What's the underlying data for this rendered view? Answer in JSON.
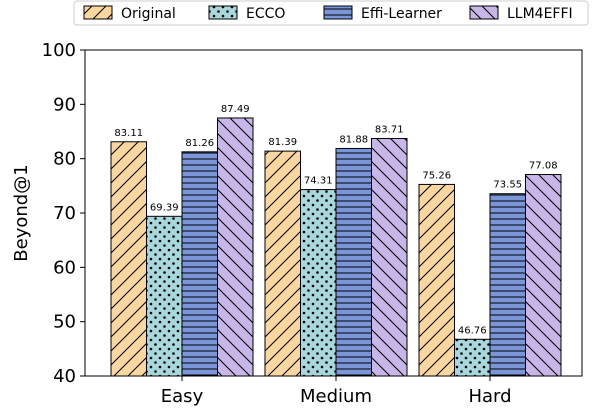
{
  "chart_data": {
    "type": "bar",
    "title": "",
    "xlabel": "",
    "ylabel": "Beyond@1",
    "ylim": [
      40,
      100
    ],
    "yticks": [
      40,
      50,
      60,
      70,
      80,
      90,
      100
    ],
    "categories": [
      "Easy",
      "Medium",
      "Hard"
    ],
    "series": [
      {
        "name": "Original",
        "values": [
          83.11,
          81.39,
          75.26
        ],
        "color": "#fad7a0",
        "pattern": "diagonal-forward"
      },
      {
        "name": "ECCO",
        "values": [
          69.39,
          74.31,
          46.76
        ],
        "color": "#a8d8dc",
        "pattern": "dots"
      },
      {
        "name": "Effi-Learner",
        "values": [
          81.26,
          81.88,
          73.55
        ],
        "color": "#7b96d8",
        "pattern": "horizontal"
      },
      {
        "name": "LLM4EFFI",
        "values": [
          87.49,
          83.71,
          77.08
        ],
        "color": "#c8b6e8",
        "pattern": "diagonal-back"
      }
    ],
    "legend_position": "top",
    "grid": false
  }
}
